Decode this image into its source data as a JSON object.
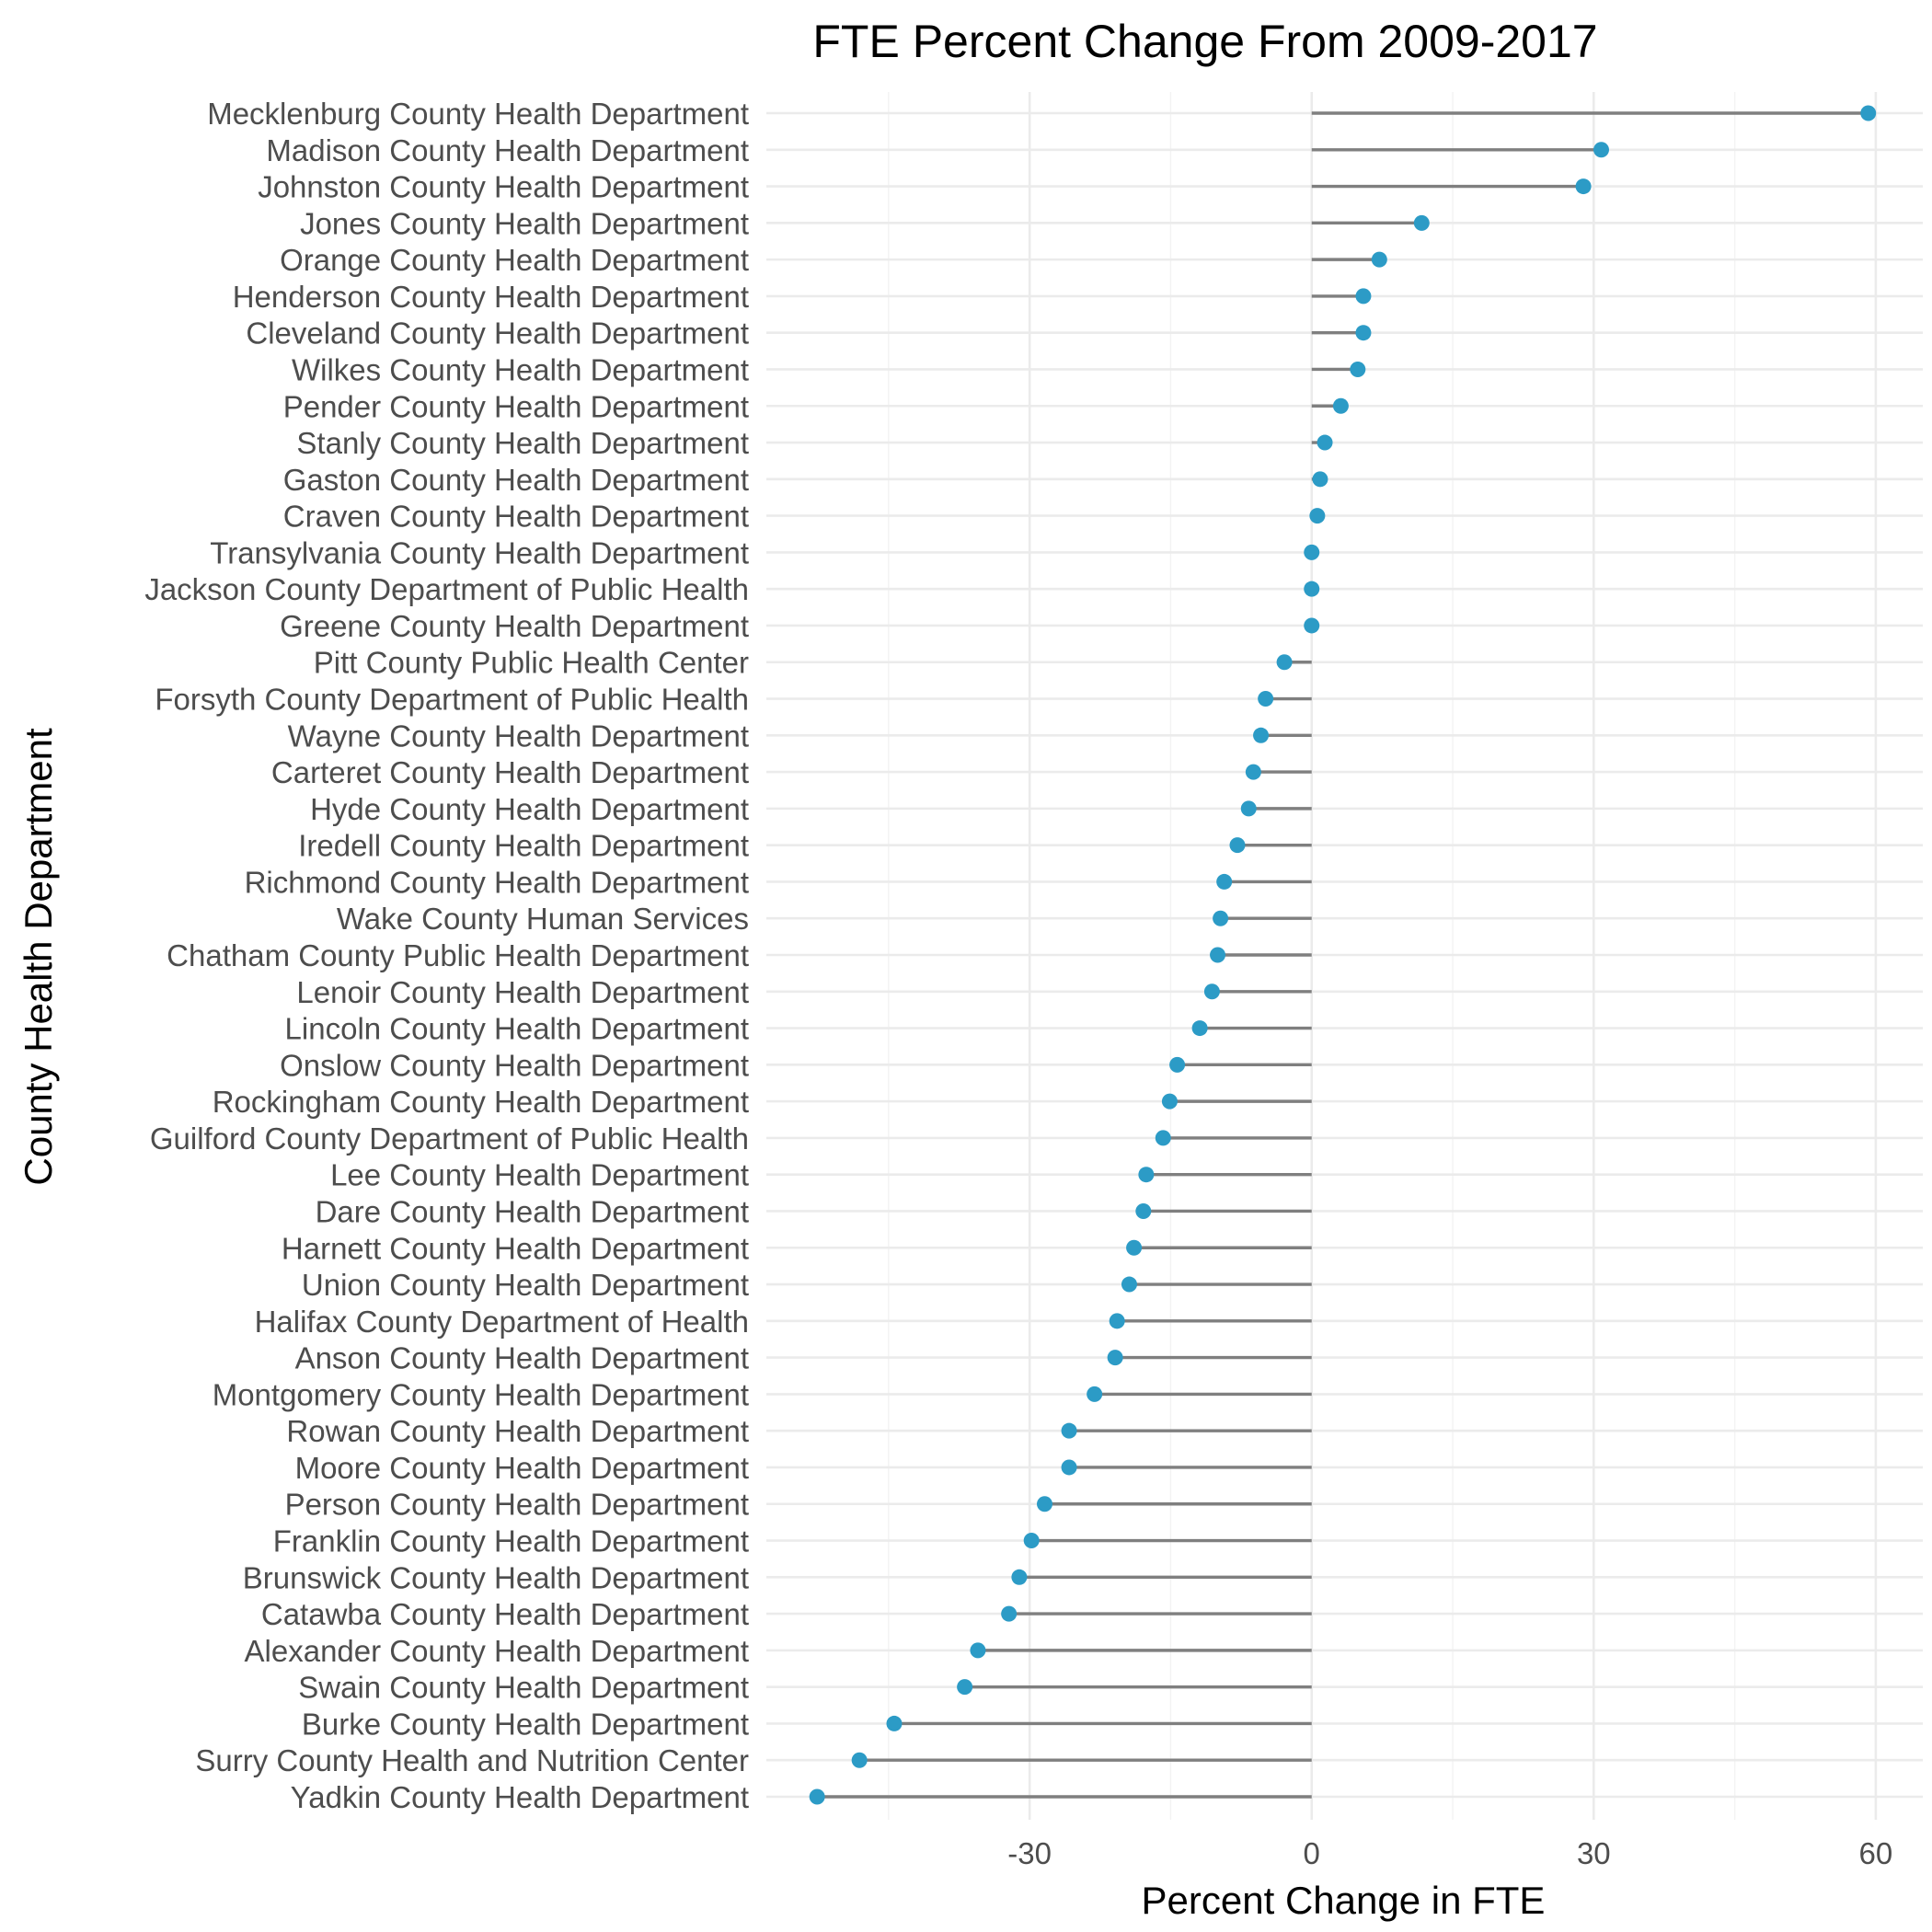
{
  "chart_data": {
    "type": "lollipop",
    "title": "FTE Percent Change From 2009-2017",
    "xlabel": "Percent Change in FTE",
    "ylabel": "County Health Department",
    "xlim": [
      -58,
      65
    ],
    "xticks": [
      -30,
      0,
      30,
      60
    ],
    "xtick_labels": [
      "-30",
      "0",
      "30",
      "60"
    ],
    "grid": true,
    "colors": {
      "point": "#2c9bc6",
      "stem": "#7f7f7f",
      "grid": "#ebebeb"
    },
    "categories": [
      "Mecklenburg County Health Department",
      "Madison County Health Department",
      "Johnston County Health Department",
      "Jones County Health Department",
      "Orange County Health Department",
      "Henderson County Health Department",
      "Cleveland County Health Department",
      "Wilkes County Health Department",
      "Pender County Health Department",
      "Stanly County Health Department",
      "Gaston County Health Department",
      "Craven County Health Department",
      "Transylvania County Health Department",
      "Jackson County Department of Public Health",
      "Greene County Health Department",
      "Pitt County Public Health Center",
      "Forsyth County Department of Public Health",
      "Wayne County Health Department",
      "Carteret County Health Department",
      "Hyde County Health Department",
      "Iredell County Health Department",
      "Richmond County Health Department",
      "Wake County Human Services",
      "Chatham County Public Health Department",
      "Lenoir County Health Department",
      "Lincoln County Health Department",
      "Onslow County Health Department",
      "Rockingham County Health Department",
      "Guilford County Department of Public Health",
      "Lee County Health Department",
      "Dare County Health Department",
      "Harnett County Health Department",
      "Union County Health Department",
      "Halifax County Department of Health",
      "Anson County Health Department",
      "Montgomery County Health Department",
      "Rowan County Health Department",
      "Moore County Health Department",
      "Person County Health Department",
      "Franklin County Health Department",
      "Brunswick County Health Department",
      "Catawba County Health Department",
      "Alexander County Health Department",
      "Swain County Health Department",
      "Burke County Health Department",
      "Surry County Health and Nutrition Center",
      "Yadkin County Health Department"
    ],
    "values": [
      59.2,
      30.8,
      28.9,
      11.7,
      7.2,
      5.5,
      5.5,
      4.9,
      3.1,
      1.4,
      0.9,
      0.6,
      0.0,
      0.0,
      0.0,
      -2.9,
      -4.9,
      -5.4,
      -6.2,
      -6.7,
      -7.9,
      -9.3,
      -9.7,
      -10.0,
      -10.6,
      -11.9,
      -14.3,
      -15.1,
      -15.8,
      -17.6,
      -17.9,
      -18.9,
      -19.4,
      -20.7,
      -20.9,
      -23.1,
      -25.8,
      -25.8,
      -28.4,
      -29.8,
      -31.1,
      -32.2,
      -35.5,
      -36.9,
      -44.4,
      -48.1,
      -52.6
    ]
  }
}
